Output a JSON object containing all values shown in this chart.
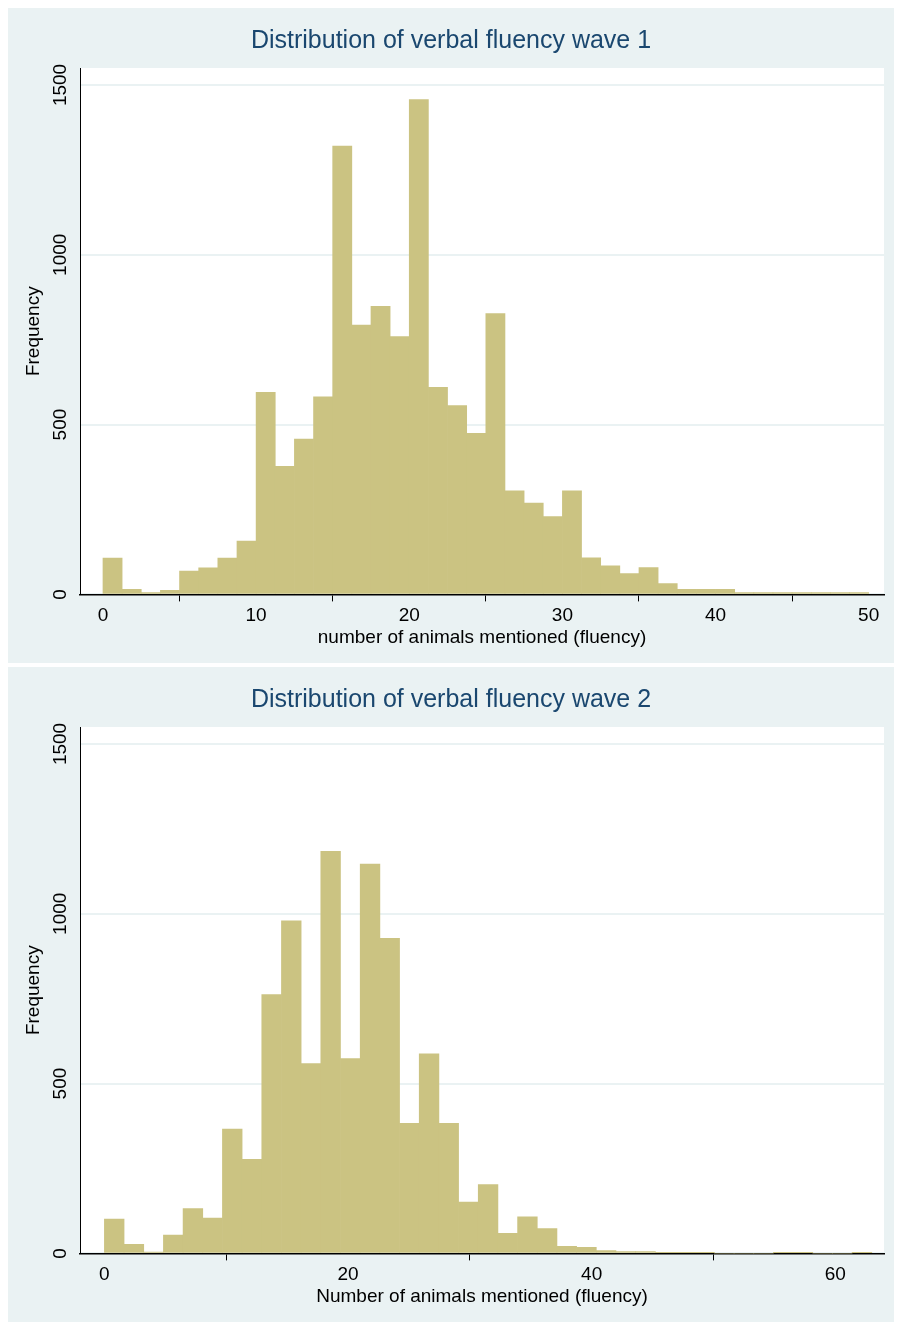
{
  "chart_data": [
    {
      "type": "histogram",
      "title": "Distribution of verbal fluency wave 1",
      "xlabel": "number of animals mentioned (fluency)",
      "ylabel": "Frequency",
      "color": "#cbc382",
      "bins": [
        0,
        1.25,
        2.5,
        3.75,
        5,
        6.25,
        7.5,
        8.75,
        10,
        11.25,
        12.5,
        13.75,
        15,
        16.25,
        17.5,
        18.75,
        20,
        21.25,
        22.5,
        23.75,
        25,
        26.25,
        27.5,
        28.75,
        30,
        31.25,
        32.5,
        33.75,
        35,
        36.25,
        37.5,
        38.75,
        40,
        41.25,
        42.5,
        43.75,
        45,
        46.25,
        47.5,
        48.75,
        50
      ],
      "values": [
        107,
        15,
        5,
        12,
        69,
        78,
        107,
        157,
        595,
        377,
        457,
        582,
        1320,
        793,
        848,
        759,
        1457,
        610,
        556,
        474,
        827,
        305,
        269,
        229,
        305,
        108,
        84,
        61,
        79,
        32,
        15,
        15,
        15,
        5,
        5,
        5,
        5,
        5,
        5,
        5
      ],
      "xlim": [
        -1.5,
        51
      ],
      "xticks": [
        0,
        10,
        20,
        30,
        40,
        50
      ],
      "ylim": [
        0,
        1550
      ],
      "yticks": [
        0,
        500,
        1000,
        1500
      ],
      "grid": "y"
    },
    {
      "type": "histogram",
      "title": "Distribution of verbal fluency wave 2",
      "xlabel": "Number of animals mentioned (fluency)",
      "ylabel": "Frequency",
      "color": "#cbc382",
      "bins": [
        0,
        1.62,
        3.23,
        4.85,
        6.46,
        8.08,
        9.69,
        11.31,
        12.92,
        14.54,
        16.15,
        17.77,
        19.38,
        21,
        22.62,
        24.23,
        25.85,
        27.46,
        29.08,
        30.69,
        32.31,
        33.92,
        35.54,
        37.15,
        38.77,
        40.38,
        42,
        43.62,
        45.23,
        46.85,
        48.46,
        50.08,
        51.69,
        53.31,
        54.92,
        56.54,
        58.15,
        59.77,
        61.38,
        63
      ],
      "values": [
        101,
        27,
        4,
        54,
        132,
        104,
        366,
        277,
        762,
        979,
        559,
        1184,
        574,
        1146,
        928,
        383,
        588,
        383,
        151,
        203,
        59,
        108,
        73,
        21,
        18,
        8,
        5,
        5,
        2,
        2,
        2,
        0,
        0,
        0,
        2,
        2,
        0,
        0,
        2
      ],
      "xlim": [
        -2,
        64
      ],
      "xticks": [
        0,
        20,
        40,
        60
      ],
      "ylim": [
        0,
        1550
      ],
      "yticks": [
        0,
        500,
        1000,
        1500
      ],
      "grid": "y"
    }
  ]
}
